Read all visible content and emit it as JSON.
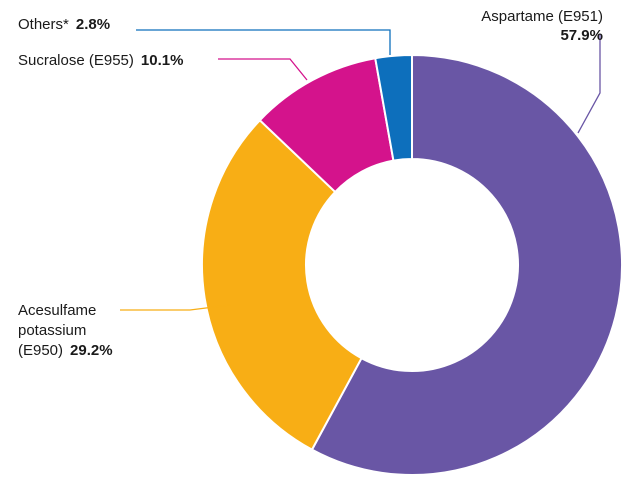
{
  "chart_data": {
    "type": "pie",
    "donut": true,
    "title": "",
    "slices": [
      {
        "name": "Aspartame (E951)",
        "value": 57.9,
        "value_label": "57.9%",
        "color": "#6956a5",
        "label_lines": [
          "Aspartame (E951)"
        ],
        "value_on_own_line": true
      },
      {
        "name": "Acesulfame potassium (E950)",
        "value": 29.2,
        "value_label": "29.2%",
        "color": "#f8ae15",
        "label_lines": [
          "Acesulfame",
          "potassium",
          "(E950)"
        ],
        "value_on_own_line": false
      },
      {
        "name": "Sucralose (E955)",
        "value": 10.1,
        "value_label": "10.1%",
        "color": "#d4138c",
        "label_lines": [
          "Sucralose (E955)"
        ],
        "value_on_own_line": false
      },
      {
        "name": "Others*",
        "value": 2.8,
        "value_label": "2.8%",
        "color": "#0d6fbc",
        "label_lines": [
          "Others*"
        ],
        "value_on_own_line": false
      }
    ]
  }
}
